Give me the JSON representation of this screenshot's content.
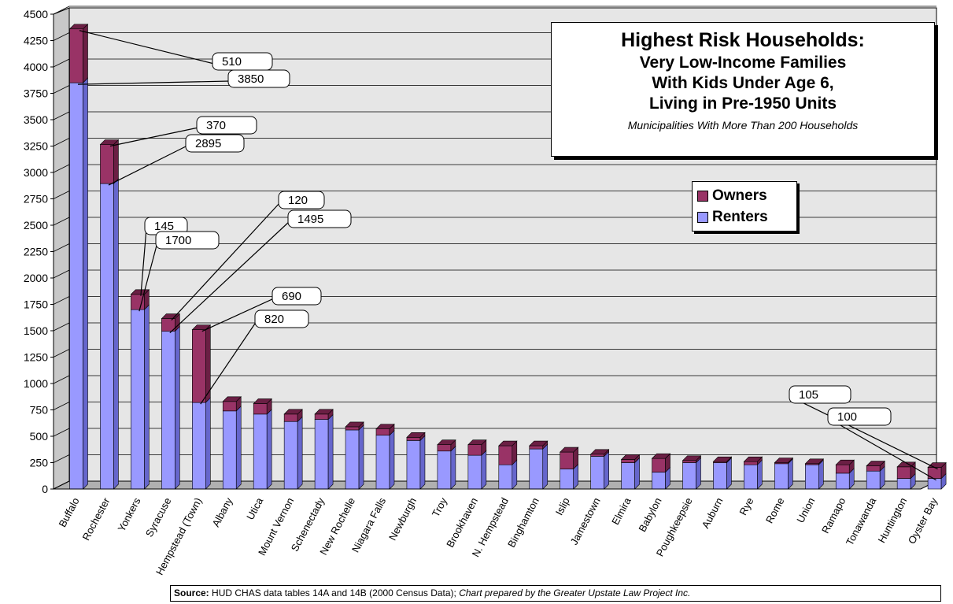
{
  "colors": {
    "renters": "#9999ff",
    "renters_side": "#6666cc",
    "owners": "#993366",
    "owners_side": "#6b1f44"
  },
  "title": {
    "line1": "Highest Risk Households:",
    "line2": "Very Low-Income Families",
    "line3": "With Kids Under Age 6,",
    "line4": "Living in Pre-1950 Units",
    "subtitle": "Municipalities With More Than 200 Households"
  },
  "source": {
    "label": "Source:",
    "text": "HUD CHAS data tables 14A and 14B  (2000 Census Data);",
    "credit": "Chart prepared by the Greater Upstate Law Project Inc."
  },
  "chart_data": {
    "type": "bar",
    "stacked": true,
    "title": "Highest Risk Households: Very Low-Income Families With Kids Under Age 6, Living in Pre-1950 Units",
    "subtitle": "Municipalities With More Than 200 Households",
    "xlabel": "",
    "ylabel": "",
    "ylim": [
      0,
      4500
    ],
    "yticks": [
      0,
      250,
      500,
      750,
      1000,
      1250,
      1500,
      1750,
      2000,
      2250,
      2500,
      2750,
      3000,
      3250,
      3500,
      3750,
      4000,
      4250,
      4500
    ],
    "grid": true,
    "legend_position": "right",
    "categories": [
      "Buffalo",
      "Rochester",
      "Yonkers",
      "Syracuse",
      "Hempstead (Town)",
      "Albany",
      "Utica",
      "Mount Vernon",
      "Schenectady",
      "New Rochelle",
      "Niagara Falls",
      "Newburgh",
      "Troy",
      "Brookhaven",
      "N. Hempstead",
      "Binghamton",
      "Islip",
      "Jamestown",
      "Elmira",
      "Babylon",
      "Poughkeepsie",
      "Auburn",
      "Rye",
      "Rome",
      "Union",
      "Ramapo",
      "Tonawanda",
      "Huntington",
      "Oyster Bay"
    ],
    "series": [
      {
        "name": "Renters",
        "values": [
          3850,
          2895,
          1700,
          1495,
          820,
          740,
          710,
          640,
          660,
          560,
          510,
          460,
          360,
          320,
          230,
          380,
          190,
          310,
          250,
          160,
          250,
          250,
          230,
          240,
          230,
          150,
          170,
          100,
          100
        ]
      },
      {
        "name": "Owners",
        "values": [
          510,
          370,
          145,
          120,
          690,
          90,
          100,
          70,
          50,
          30,
          60,
          30,
          60,
          100,
          180,
          30,
          160,
          20,
          30,
          130,
          20,
          10,
          30,
          10,
          10,
          80,
          50,
          110,
          105
        ]
      }
    ],
    "annotations": [
      {
        "text": "510",
        "category": "Buffalo",
        "series": "Owners"
      },
      {
        "text": "3850",
        "category": "Buffalo",
        "series": "Renters"
      },
      {
        "text": "370",
        "category": "Rochester",
        "series": "Owners"
      },
      {
        "text": "2895",
        "category": "Rochester",
        "series": "Renters"
      },
      {
        "text": "145",
        "category": "Yonkers",
        "series": "Owners"
      },
      {
        "text": "1700",
        "category": "Yonkers",
        "series": "Renters"
      },
      {
        "text": "120",
        "category": "Syracuse",
        "series": "Owners"
      },
      {
        "text": "1495",
        "category": "Syracuse",
        "series": "Renters"
      },
      {
        "text": "690",
        "category": "Hempstead (Town)",
        "series": "Owners"
      },
      {
        "text": "820",
        "category": "Hempstead (Town)",
        "series": "Renters"
      },
      {
        "text": "105",
        "category": "Oyster Bay",
        "series": "Owners"
      },
      {
        "text": "100",
        "category": "Oyster Bay",
        "series": "Renters"
      }
    ]
  }
}
